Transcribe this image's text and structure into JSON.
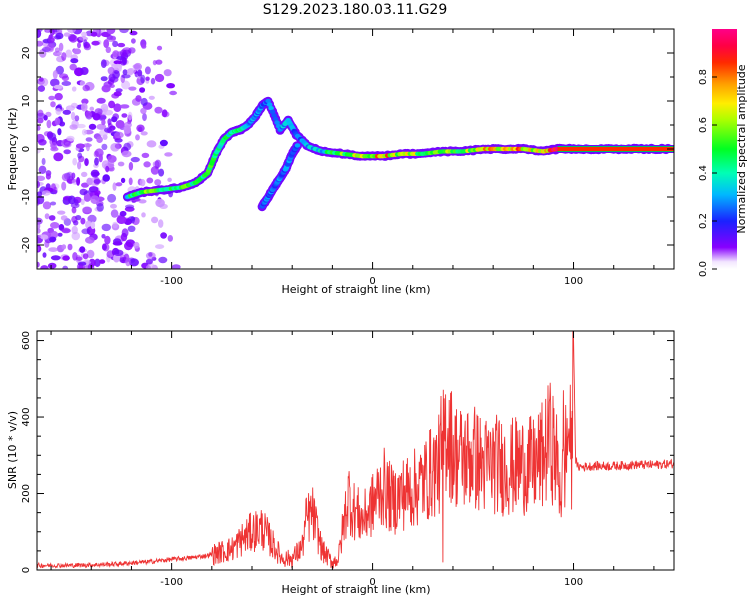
{
  "figure": {
    "title": "S129.2023.180.03.11.G29"
  },
  "chart_data": [
    {
      "type": "heatmap",
      "title": "S129.2023.180.03.11.G29",
      "xlabel": "Height of straight line (km)",
      "ylabel": "Frequency (Hz)",
      "xlim": [
        -167,
        150
      ],
      "ylim": [
        -25,
        25
      ],
      "x_ticks": [
        -100,
        0,
        100
      ],
      "x_tick_labels": [
        "-100",
        "0",
        "100"
      ],
      "y_ticks": [
        -20,
        -10,
        0,
        10,
        20
      ],
      "y_tick_labels": [
        "-20",
        "-10",
        "0",
        "10",
        "20"
      ],
      "colorbar": {
        "label": "Normalized spectral amplitude",
        "range": [
          0,
          1
        ],
        "ticks": [
          0.0,
          0.2,
          0.4,
          0.6,
          0.8
        ],
        "tick_labels": [
          "0.0",
          "0.2",
          "0.4",
          "0.6",
          "0.8"
        ],
        "colormap": "gist_rainbow_r (white -> purple -> blue -> cyan -> green -> yellow -> orange -> red -> magenta)"
      },
      "ridge": {
        "description": "dominant spectral ridge (frequency peak) vs height",
        "x": [
          -122,
          -115,
          -105,
          -95,
          -88,
          -82,
          -78,
          -74,
          -70,
          -66,
          -62,
          -58,
          -55,
          -52,
          -46,
          -42,
          -38,
          -32,
          -25,
          -15,
          -5,
          5,
          15,
          25,
          35,
          45,
          55,
          65,
          75,
          85,
          92,
          100,
          110,
          120,
          130,
          140,
          148
        ],
        "y": [
          -10,
          -9,
          -8.5,
          -8,
          -7,
          -5,
          -1,
          2,
          3.5,
          4,
          5,
          7,
          9,
          10,
          4,
          6,
          3,
          0.5,
          -0.5,
          -1,
          -1.5,
          -1.5,
          -1,
          -1,
          -0.5,
          -0.5,
          0,
          0,
          0,
          -0.5,
          0,
          0,
          0,
          0,
          0,
          0,
          0
        ],
        "amplitude": [
          0.4,
          0.5,
          0.5,
          0.5,
          0.45,
          0.5,
          0.45,
          0.4,
          0.45,
          0.4,
          0.3,
          0.3,
          0.25,
          0.25,
          0.3,
          0.3,
          0.25,
          0.3,
          0.35,
          0.55,
          0.6,
          0.75,
          0.6,
          0.55,
          0.55,
          0.55,
          0.65,
          0.7,
          0.75,
          0.6,
          1.0,
          1.0,
          1.0,
          1.0,
          1.0,
          1.0,
          1.0
        ]
      },
      "secondary_branch": {
        "x": [
          -55,
          -52,
          -49,
          -46,
          -43,
          -40,
          -37
        ],
        "y": [
          -12,
          -10,
          -8,
          -6,
          -4,
          -1,
          1
        ]
      },
      "noise_region": {
        "x_range": [
          -167,
          -95
        ],
        "y_range": [
          -25,
          25
        ]
      }
    },
    {
      "type": "line",
      "xlabel": "Height of straight line (km)",
      "ylabel": "SNR (10 * v/v)",
      "xlim": [
        -167,
        150
      ],
      "ylim": [
        0,
        625
      ],
      "x_ticks": [
        -100,
        0,
        100
      ],
      "x_tick_labels": [
        "-100",
        "0",
        "100"
      ],
      "y_ticks": [
        0,
        200,
        400,
        600
      ],
      "y_tick_labels": [
        "0",
        "200",
        "400",
        "600"
      ],
      "color": "#ee3333",
      "series": [
        {
          "x": [
            -167,
            -150,
            -130,
            -110,
            -100,
            -90,
            -80,
            -70,
            -65,
            -60,
            -55,
            -50,
            -45,
            -40,
            -35,
            -33,
            -30,
            -25,
            -20,
            -17,
            -15,
            -12,
            -10,
            -8,
            -5,
            0,
            5,
            10,
            15,
            20,
            25,
            30,
            34,
            35,
            37,
            40,
            45,
            50,
            55,
            60,
            65,
            70,
            75,
            80,
            85,
            88,
            90,
            92,
            94,
            96,
            98,
            99,
            100,
            101,
            102,
            105,
            110,
            120,
            130,
            140,
            150
          ],
          "y": [
            12,
            12,
            15,
            22,
            28,
            32,
            40,
            55,
            80,
            100,
            110,
            70,
            30,
            30,
            60,
            130,
            150,
            50,
            20,
            30,
            100,
            200,
            160,
            150,
            130,
            170,
            220,
            180,
            200,
            210,
            230,
            260,
            280,
            320,
            380,
            310,
            290,
            300,
            270,
            280,
            270,
            270,
            275,
            270,
            300,
            340,
            320,
            270,
            200,
            300,
            380,
            250,
            620,
            290,
            270,
            270,
            272,
            272,
            275,
            275,
            278
          ],
          "extremes": [
            {
              "x": 34,
              "y": 455
            },
            {
              "x": 35,
              "y": 20
            },
            {
              "x": 88,
              "y": 440
            },
            {
              "x": 95,
              "y": 470
            },
            {
              "x": 100,
              "y": 50
            },
            {
              "x": 100,
              "y": 625
            }
          ]
        }
      ]
    }
  ]
}
